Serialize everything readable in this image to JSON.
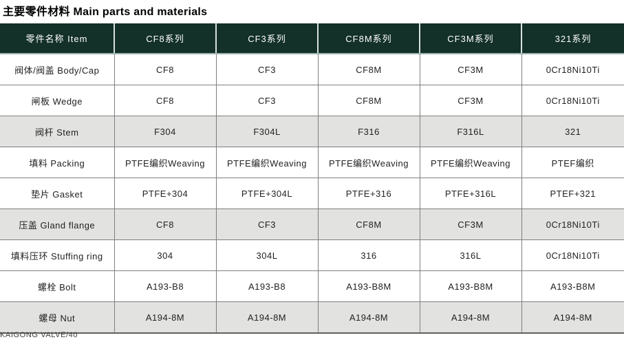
{
  "page": {
    "title": "主要零件材料 Main parts and materials",
    "footer": "KAIGONG VALVE/40"
  },
  "colors": {
    "header_bg": "#133029",
    "header_text": "#ffffff",
    "shaded_row_bg": "#e2e2e0",
    "grid_line": "#7e7e7e"
  },
  "table": {
    "columns": [
      "零件名称 Item",
      "CF8系列",
      "CF3系列",
      "CF8M系列",
      "CF3M系列",
      "321系列"
    ],
    "rows": [
      {
        "shaded": false,
        "cells": [
          "阀体/阀盖 Body/Cap",
          "CF8",
          "CF3",
          "CF8M",
          "CF3M",
          "0Cr18Ni10Ti"
        ]
      },
      {
        "shaded": false,
        "cells": [
          "闸板 Wedge",
          "CF8",
          "CF3",
          "CF8M",
          "CF3M",
          "0Cr18Ni10Ti"
        ]
      },
      {
        "shaded": true,
        "cells": [
          "阀杆 Stem",
          "F304",
          "F304L",
          "F316",
          "F316L",
          "321"
        ]
      },
      {
        "shaded": false,
        "cells": [
          "填料 Packing",
          "PTFE编织Weaving",
          "PTFE编织Weaving",
          "PTFE编织Weaving",
          "PTFE编织Weaving",
          "PTEF编织"
        ]
      },
      {
        "shaded": false,
        "cells": [
          "垫片 Gasket",
          "PTFE+304",
          "PTFE+304L",
          "PTFE+316",
          "PTFE+316L",
          "PTEF+321"
        ]
      },
      {
        "shaded": true,
        "cells": [
          "压盖 Gland flange",
          "CF8",
          "CF3",
          "CF8M",
          "CF3M",
          "0Cr18Ni10Ti"
        ]
      },
      {
        "shaded": false,
        "cells": [
          "填料压环 Stuffing ring",
          "304",
          "304L",
          "316",
          "316L",
          "0Cr18Ni10Ti"
        ]
      },
      {
        "shaded": false,
        "cells": [
          "螺栓 Bolt",
          "A193-B8",
          "A193-B8",
          "A193-B8M",
          "A193-B8M",
          "A193-B8M"
        ]
      },
      {
        "shaded": true,
        "cells": [
          "螺母 Nut",
          "A194-8M",
          "A194-8M",
          "A194-8M",
          "A194-8M",
          "A194-8M"
        ]
      }
    ]
  }
}
